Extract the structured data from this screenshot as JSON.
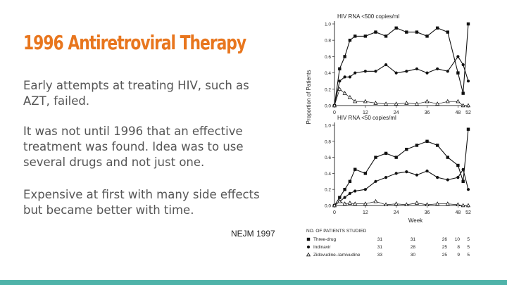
{
  "slide": {
    "title": "1996 Antiretroviral Therapy",
    "paragraphs": [
      "Early attempts at treating HIV, such as AZT, failed.",
      "It was not until 1996 that an effective treatment was found.  Idea was to use several drugs and not just one.",
      "Expensive at first with many side effects but became better with time."
    ],
    "citation": "NEJM 1997"
  },
  "colors": {
    "title": "#e8761e",
    "body_text": "#555555",
    "bottom_bar": "#4fb3a9"
  },
  "chart_data": [
    {
      "type": "line",
      "title": "HIV RNA <500 copies/ml",
      "ylabel": "Proportion of Patients",
      "xlabel": "",
      "ylim": [
        0,
        1.0
      ],
      "yticks": [
        "0.0",
        "0.2",
        "0.4",
        "0.6",
        "0.8",
        "1.0"
      ],
      "xticks": [
        0,
        12,
        24,
        36,
        48,
        52
      ],
      "xlim": [
        0,
        52
      ],
      "series": [
        {
          "name": "Three-drug",
          "marker": "square",
          "x": [
            0,
            2,
            4,
            6,
            8,
            12,
            16,
            20,
            24,
            28,
            32,
            36,
            40,
            44,
            48,
            50,
            52
          ],
          "values": [
            0.0,
            0.45,
            0.6,
            0.8,
            0.85,
            0.85,
            0.9,
            0.85,
            0.95,
            0.9,
            0.9,
            0.85,
            0.95,
            0.9,
            0.4,
            0.15,
            1.0
          ]
        },
        {
          "name": "Indinavir",
          "marker": "circle",
          "x": [
            0,
            2,
            4,
            6,
            8,
            12,
            16,
            20,
            24,
            28,
            32,
            36,
            40,
            44,
            48,
            50,
            52
          ],
          "values": [
            0.0,
            0.3,
            0.35,
            0.35,
            0.4,
            0.42,
            0.42,
            0.5,
            0.4,
            0.42,
            0.45,
            0.4,
            0.45,
            0.42,
            0.6,
            0.5,
            0.3
          ]
        },
        {
          "name": "Zidovudine-lamivudine",
          "marker": "triangle",
          "x": [
            0,
            2,
            4,
            6,
            8,
            12,
            16,
            20,
            24,
            28,
            32,
            36,
            40,
            44,
            48,
            50,
            52
          ],
          "values": [
            0.0,
            0.2,
            0.15,
            0.1,
            0.05,
            0.05,
            0.03,
            0.02,
            0.02,
            0.03,
            0.02,
            0.05,
            0.02,
            0.05,
            0.05,
            0.0,
            0.0
          ]
        }
      ]
    },
    {
      "type": "line",
      "title": "HIV RNA <50 copies/ml",
      "ylabel": "Proportion of Patients",
      "xlabel": "Week",
      "ylim": [
        0,
        1.0
      ],
      "yticks": [
        "0.0",
        "0.2",
        "0.4",
        "0.6",
        "0.8",
        "1.0"
      ],
      "xticks": [
        0,
        12,
        24,
        36,
        48,
        52
      ],
      "xlim": [
        0,
        52
      ],
      "series": [
        {
          "name": "Three-drug",
          "marker": "square",
          "x": [
            0,
            2,
            4,
            6,
            8,
            12,
            16,
            20,
            24,
            28,
            32,
            36,
            40,
            44,
            48,
            50,
            52
          ],
          "values": [
            0.0,
            0.1,
            0.2,
            0.3,
            0.45,
            0.4,
            0.6,
            0.65,
            0.6,
            0.7,
            0.75,
            0.8,
            0.75,
            0.6,
            0.5,
            0.3,
            0.95
          ]
        },
        {
          "name": "Indinavir",
          "marker": "circle",
          "x": [
            0,
            2,
            4,
            6,
            8,
            12,
            16,
            20,
            24,
            28,
            32,
            36,
            40,
            44,
            48,
            50,
            52
          ],
          "values": [
            0.0,
            0.05,
            0.1,
            0.15,
            0.18,
            0.2,
            0.3,
            0.35,
            0.4,
            0.42,
            0.38,
            0.43,
            0.35,
            0.32,
            0.35,
            0.45,
            0.2
          ]
        },
        {
          "name": "Zidovudine-lamivudine",
          "marker": "triangle",
          "x": [
            0,
            2,
            4,
            6,
            8,
            12,
            16,
            20,
            24,
            28,
            32,
            36,
            40,
            44,
            48,
            50,
            52
          ],
          "values": [
            0.0,
            0.05,
            0.02,
            0.03,
            0.02,
            0.02,
            0.05,
            0.01,
            0.02,
            0.01,
            0.03,
            0.01,
            0.02,
            0.02,
            0.01,
            0.0,
            0.0
          ]
        }
      ]
    }
  ],
  "legend": {
    "header": "No. of Patients Studied",
    "columns": [
      "0",
      "24",
      "36",
      "48",
      "52"
    ],
    "rows": [
      {
        "marker": "square",
        "name": "Three-drug",
        "counts": [
          "31",
          "31",
          "26",
          "10",
          "5"
        ]
      },
      {
        "marker": "circle",
        "name": "Indinavir",
        "counts": [
          "31",
          "28",
          "25",
          "8",
          "5"
        ]
      },
      {
        "marker": "triangle",
        "name": "Zidovudine–lamivudine",
        "counts": [
          "33",
          "30",
          "25",
          "9",
          "5"
        ]
      }
    ]
  }
}
